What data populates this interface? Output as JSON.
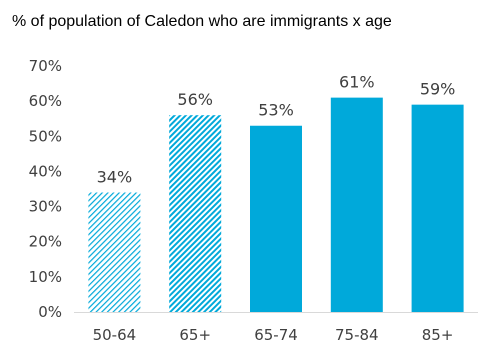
{
  "chart_data": {
    "type": "bar",
    "title": "% of population of Caledon who are immigrants x age",
    "categories": [
      "50-64",
      "65+",
      "65-74",
      "75-84",
      "85+"
    ],
    "values": [
      34,
      56,
      53,
      61,
      59
    ],
    "value_labels": [
      "34%",
      "56%",
      "53%",
      "61%",
      "59%"
    ],
    "bar_styles": [
      "hatched-light",
      "hatched",
      "solid",
      "solid",
      "solid"
    ],
    "ylim": [
      0,
      70
    ],
    "yticks": [
      0,
      10,
      20,
      30,
      40,
      50,
      60,
      70
    ],
    "ytick_labels": [
      "0%",
      "10%",
      "20%",
      "30%",
      "40%",
      "50%",
      "60%",
      "70%"
    ],
    "xlabel": "",
    "ylabel": "",
    "grid": false,
    "legend": "none",
    "colors": {
      "bar": "#00A9DA",
      "axis": "#D9D9D9",
      "text": "#404040"
    }
  }
}
